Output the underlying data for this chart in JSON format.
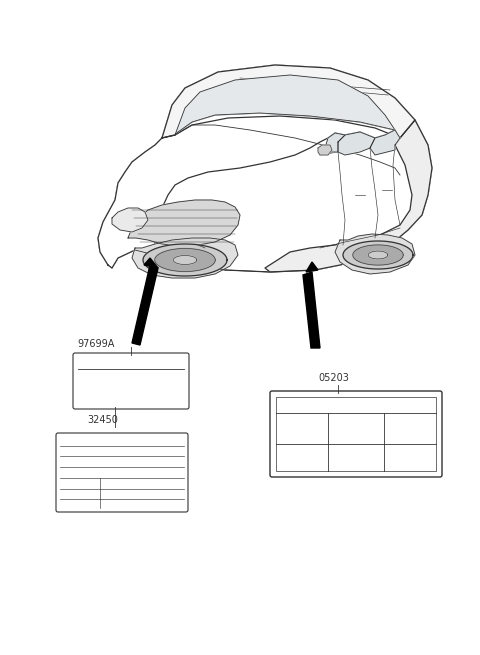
{
  "bg_color": "#ffffff",
  "line_color": "#333333",
  "label_97699A": "97699A",
  "label_05203": "05203",
  "label_32450": "32450",
  "car_scale": 1.0,
  "fig_w": 4.8,
  "fig_h": 6.55,
  "dpi": 100
}
